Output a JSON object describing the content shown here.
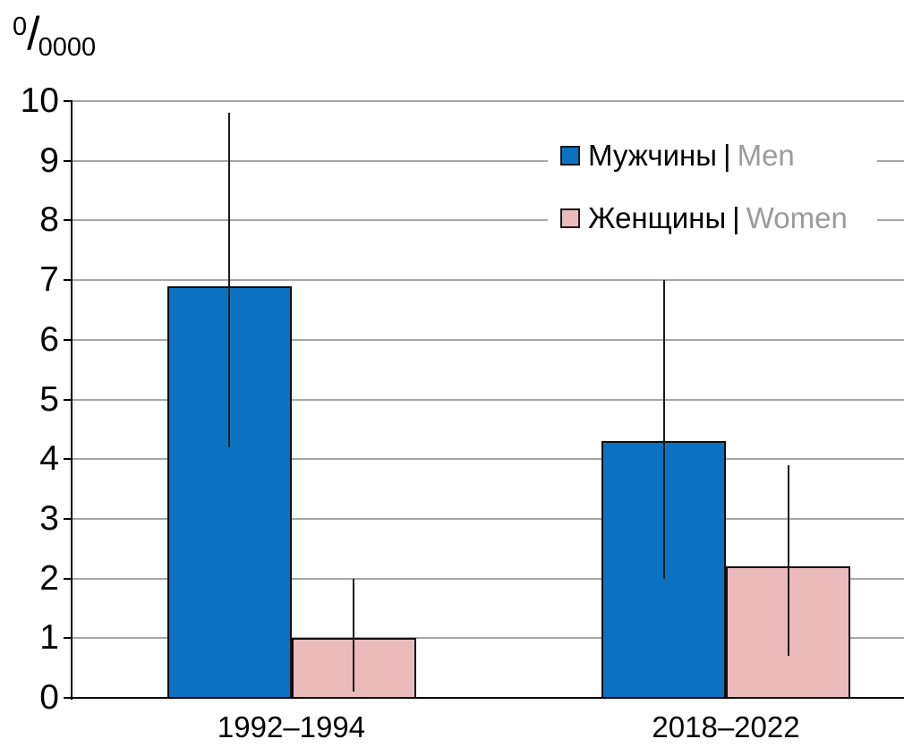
{
  "chart_data": {
    "type": "bar",
    "title": "",
    "unit_label": {
      "sup": "0",
      "slash": "/",
      "sub": "0000"
    },
    "categories": [
      "1992–1994",
      "2018–2022"
    ],
    "series": [
      {
        "name_ru": "Мужчины",
        "separator": "|",
        "name_en": "Men",
        "color": "#0b72c2",
        "values": [
          6.9,
          4.3
        ],
        "error_low": [
          4.2,
          2.0
        ],
        "error_high": [
          9.8,
          7.0
        ]
      },
      {
        "name_ru": "Женщины",
        "separator": "|",
        "name_en": "Women",
        "color": "#ebbbbb",
        "values": [
          1.0,
          2.2
        ],
        "error_low": [
          0.1,
          0.7
        ],
        "error_high": [
          2.0,
          3.9
        ]
      }
    ],
    "y_axis": {
      "min": 0,
      "max": 10,
      "tick_step": 1,
      "tick_labels": [
        "0",
        "1",
        "2",
        "3",
        "4",
        "5",
        "6",
        "7",
        "8",
        "9",
        "10"
      ]
    },
    "legend_position": "top-right",
    "grid": true,
    "error_bars": true,
    "colors": {
      "men_bar": "#0b72c2",
      "women_bar": "#ebbbbb",
      "bar_border": "#0d0d0d",
      "gridline": "#a6a6a6",
      "axis": "#000000",
      "error_bar": "#1a1a1a",
      "legend_en_text": "#9b9b9b",
      "background": "#ffffff"
    }
  }
}
